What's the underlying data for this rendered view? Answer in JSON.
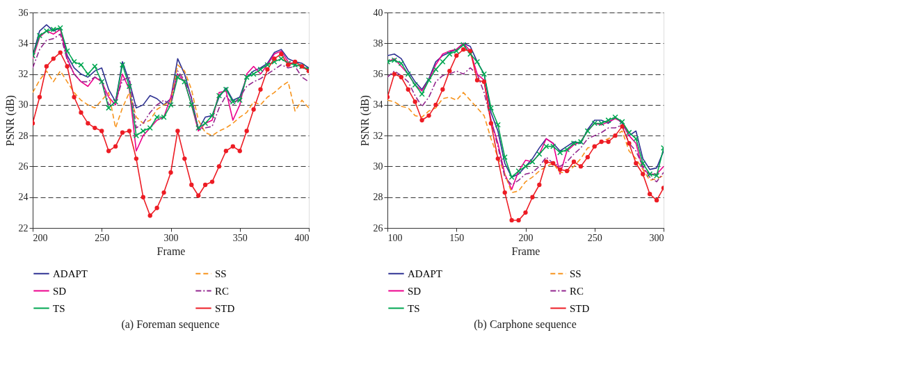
{
  "chart_data": [
    {
      "type": "line",
      "xlabel": "Frame",
      "ylabel": "PSNR (dB)",
      "annotations": [
        "(a) Foreman sequence"
      ],
      "xlim": [
        200,
        400
      ],
      "xticks": [
        200,
        250,
        300,
        350,
        400
      ],
      "ylim": [
        22,
        36
      ],
      "yticks": [
        22,
        24,
        26,
        28,
        30,
        32,
        34,
        36
      ],
      "grid": "y",
      "legend": "bottom",
      "x": [
        200,
        205,
        210,
        215,
        220,
        225,
        230,
        235,
        240,
        245,
        250,
        255,
        260,
        265,
        270,
        275,
        280,
        285,
        290,
        295,
        300,
        305,
        310,
        315,
        320,
        325,
        330,
        335,
        340,
        345,
        350,
        355,
        360,
        365,
        370,
        375,
        380,
        385,
        390,
        395,
        400
      ],
      "series": [
        {
          "name": "ADAPT",
          "color": "#2e3192",
          "line_style": "solid",
          "marker": "none",
          "values": [
            33.2,
            34.8,
            35.2,
            34.8,
            35.0,
            33.2,
            32.4,
            32.0,
            31.8,
            32.2,
            32.4,
            31.0,
            30.2,
            32.8,
            31.5,
            29.8,
            30.0,
            30.6,
            30.4,
            30.0,
            30.4,
            33.0,
            32.0,
            30.4,
            28.4,
            29.2,
            29.3,
            30.5,
            31.1,
            30.3,
            30.5,
            31.8,
            32.2,
            32.4,
            32.7,
            33.4,
            33.6,
            33.0,
            32.8,
            32.7,
            32.4
          ]
        },
        {
          "name": "SD",
          "color": "#ec008c",
          "line_style": "solid",
          "marker": "none",
          "values": [
            33.0,
            34.4,
            34.8,
            34.6,
            34.9,
            33.0,
            32.0,
            31.5,
            31.2,
            31.8,
            31.5,
            30.5,
            30.0,
            32.0,
            31.0,
            27.0,
            28.0,
            28.5,
            29.0,
            29.2,
            30.5,
            32.0,
            31.5,
            30.0,
            28.3,
            28.8,
            29.0,
            30.8,
            30.9,
            29.0,
            30.0,
            32.0,
            32.5,
            32.0,
            32.6,
            33.3,
            33.5,
            32.8,
            32.6,
            32.5,
            32.2
          ]
        },
        {
          "name": "TS",
          "color": "#00a651",
          "line_style": "solid",
          "marker": "cross",
          "values": [
            33.2,
            34.5,
            34.8,
            34.9,
            35.0,
            33.5,
            32.8,
            32.6,
            32.0,
            32.5,
            31.5,
            29.8,
            30.2,
            32.6,
            31.2,
            28.0,
            28.3,
            28.5,
            29.2,
            29.2,
            30.0,
            31.8,
            31.5,
            30.0,
            28.5,
            28.8,
            29.3,
            30.6,
            31.0,
            30.2,
            30.3,
            31.8,
            32.0,
            32.3,
            32.6,
            32.8,
            33.0,
            32.7,
            32.6,
            32.5,
            32.3
          ]
        },
        {
          "name": "SS",
          "color": "#f7941d",
          "line_style": "dashed",
          "marker": "none",
          "values": [
            30.8,
            31.6,
            32.2,
            31.5,
            32.2,
            31.5,
            30.8,
            30.3,
            30.0,
            29.8,
            30.3,
            30.8,
            28.5,
            29.8,
            30.8,
            29.2,
            28.8,
            29.0,
            29.7,
            30.0,
            30.2,
            32.6,
            32.2,
            31.0,
            29.0,
            28.2,
            28.0,
            28.3,
            28.5,
            28.8,
            29.2,
            29.5,
            30.2,
            30.0,
            30.5,
            30.8,
            31.2,
            31.5,
            29.6,
            30.3,
            29.8
          ]
        },
        {
          "name": "RC",
          "color": "#92278f",
          "line_style": "dashdot",
          "marker": "none",
          "values": [
            32.4,
            33.6,
            34.2,
            34.3,
            34.6,
            32.9,
            32.0,
            31.5,
            31.5,
            31.8,
            31.6,
            30.0,
            30.2,
            31.6,
            31.8,
            28.5,
            28.8,
            29.5,
            30.0,
            30.3,
            30.0,
            32.2,
            31.6,
            30.5,
            28.4,
            28.5,
            28.6,
            29.8,
            30.6,
            30.0,
            30.5,
            31.2,
            31.5,
            31.7,
            32.0,
            32.3,
            32.6,
            32.4,
            32.5,
            31.8,
            31.5
          ]
        },
        {
          "name": "STD",
          "color": "#ed1c24",
          "line_style": "solid",
          "marker": "circle",
          "values": [
            28.8,
            30.5,
            32.5,
            33.0,
            33.4,
            32.5,
            30.5,
            29.5,
            28.8,
            28.5,
            28.3,
            27.0,
            27.3,
            28.2,
            28.3,
            26.5,
            24.0,
            22.8,
            23.3,
            24.3,
            25.6,
            28.3,
            26.5,
            24.8,
            24.1,
            24.8,
            25.0,
            26.0,
            27.0,
            27.3,
            27.0,
            28.3,
            29.7,
            31.0,
            32.3,
            33.0,
            33.3,
            32.6,
            32.8,
            32.5,
            32.2
          ]
        }
      ]
    },
    {
      "type": "line",
      "xlabel": "Frame",
      "ylabel": "PSNR (dB)",
      "annotations": [
        "(b) Carphone sequence"
      ],
      "xlim": [
        100,
        300
      ],
      "xticks": [
        100,
        150,
        200,
        250,
        300
      ],
      "ylim": [
        26,
        40
      ],
      "yticks": [
        26,
        28,
        30,
        32,
        34,
        36,
        38,
        40
      ],
      "grid": "y",
      "legend": "bottom",
      "x": [
        100,
        105,
        110,
        115,
        120,
        125,
        130,
        135,
        140,
        145,
        150,
        155,
        160,
        165,
        170,
        175,
        180,
        185,
        190,
        195,
        200,
        205,
        210,
        215,
        220,
        225,
        230,
        235,
        240,
        245,
        250,
        255,
        260,
        265,
        270,
        275,
        280,
        285,
        290,
        295,
        300
      ],
      "series": [
        {
          "name": "ADAPT",
          "color": "#2e3192",
          "line_style": "solid",
          "marker": "none",
          "values": [
            37.2,
            37.3,
            37.0,
            36.2,
            35.5,
            35.0,
            35.7,
            36.8,
            37.2,
            37.4,
            37.6,
            38.0,
            37.8,
            36.8,
            36.0,
            33.5,
            32.3,
            30.2,
            29.3,
            29.5,
            30.0,
            30.5,
            31.2,
            31.8,
            31.5,
            31.0,
            31.3,
            31.6,
            31.5,
            32.4,
            33.0,
            33.0,
            32.8,
            33.2,
            32.8,
            32.0,
            32.3,
            30.5,
            29.8,
            29.9,
            31.0
          ]
        },
        {
          "name": "SD",
          "color": "#ec008c",
          "line_style": "solid",
          "marker": "none",
          "values": [
            36.8,
            37.0,
            36.5,
            36.0,
            35.3,
            34.9,
            35.6,
            36.6,
            37.3,
            37.5,
            37.6,
            38.0,
            37.5,
            36.0,
            35.6,
            33.0,
            31.5,
            29.5,
            28.5,
            29.7,
            30.4,
            30.3,
            30.8,
            31.8,
            31.5,
            29.5,
            31.0,
            31.4,
            31.6,
            32.3,
            32.8,
            32.7,
            32.9,
            33.1,
            32.9,
            32.0,
            31.5,
            29.8,
            29.5,
            29.5,
            30.0
          ]
        },
        {
          "name": "TS",
          "color": "#00a651",
          "line_style": "solid",
          "marker": "cross",
          "values": [
            36.8,
            36.9,
            36.7,
            36.0,
            35.3,
            34.7,
            35.6,
            36.3,
            36.8,
            37.3,
            37.5,
            37.9,
            37.3,
            36.8,
            36.0,
            33.8,
            32.7,
            30.6,
            29.3,
            29.7,
            30.0,
            30.3,
            30.8,
            31.3,
            31.3,
            30.9,
            31.1,
            31.5,
            31.6,
            32.3,
            32.8,
            32.8,
            33.0,
            33.2,
            32.9,
            32.2,
            31.8,
            30.2,
            29.5,
            29.4,
            31.2
          ]
        },
        {
          "name": "SS",
          "color": "#f7941d",
          "line_style": "dashed",
          "marker": "none",
          "values": [
            34.3,
            34.2,
            33.9,
            33.8,
            33.3,
            33.2,
            33.6,
            33.8,
            34.4,
            34.5,
            34.3,
            34.8,
            34.3,
            33.8,
            33.3,
            31.8,
            30.6,
            29.5,
            28.3,
            28.4,
            29.0,
            29.3,
            29.7,
            30.0,
            30.2,
            29.6,
            29.6,
            30.0,
            30.5,
            31.2,
            31.3,
            31.6,
            31.8,
            32.0,
            32.3,
            31.0,
            30.5,
            29.8,
            29.1,
            29.2,
            29.4
          ]
        },
        {
          "name": "RC",
          "color": "#92278f",
          "line_style": "dashdot",
          "marker": "none",
          "values": [
            35.8,
            36.2,
            35.9,
            35.5,
            34.6,
            33.9,
            34.5,
            35.5,
            35.9,
            36.0,
            36.2,
            36.0,
            36.4,
            36.0,
            34.8,
            33.0,
            31.3,
            29.3,
            28.8,
            29.1,
            29.5,
            29.6,
            30.0,
            30.6,
            30.2,
            30.0,
            30.3,
            30.8,
            31.2,
            31.8,
            32.0,
            32.2,
            32.5,
            32.5,
            32.7,
            31.5,
            31.0,
            30.0,
            29.3,
            29.0,
            29.6
          ]
        },
        {
          "name": "STD",
          "color": "#ed1c24",
          "line_style": "solid",
          "marker": "circle",
          "values": [
            34.5,
            36.0,
            35.8,
            35.0,
            34.2,
            33.0,
            33.3,
            34.0,
            35.0,
            36.2,
            37.2,
            37.6,
            37.5,
            35.6,
            35.5,
            32.8,
            30.5,
            28.3,
            26.5,
            26.5,
            27.0,
            28.0,
            28.8,
            30.3,
            30.2,
            29.8,
            29.7,
            30.3,
            30.0,
            30.6,
            31.3,
            31.6,
            31.6,
            32.0,
            32.6,
            31.5,
            30.2,
            29.5,
            28.2,
            27.8,
            28.6
          ]
        }
      ]
    }
  ]
}
